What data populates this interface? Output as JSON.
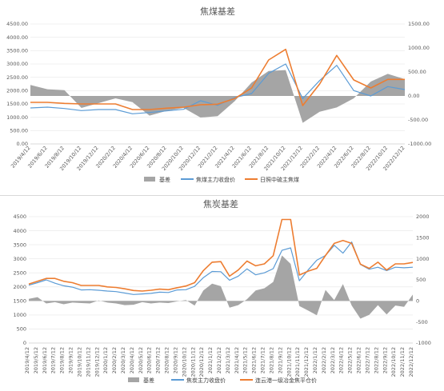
{
  "colors": {
    "basis": "#a5a5a5",
    "futures": "#5b9bd5",
    "spot": "#ed7d31",
    "grid": "#e6e6e6",
    "axis": "#595959"
  },
  "chart_data": [
    {
      "type": "line",
      "title": "焦煤基差",
      "x": [
        "2019/4/12",
        "2019/6/12",
        "2019/8/12",
        "2019/10/12",
        "2019/12/12",
        "2020/2/12",
        "2020/4/12",
        "2020/6/12",
        "2020/8/12",
        "2020/10/12",
        "2020/12/12",
        "2021/2/12",
        "2021/4/12",
        "2021/6/12",
        "2021/8/12",
        "2021/10/12",
        "2021/12/12",
        "2022/2/12",
        "2022/4/12",
        "2022/6/12",
        "2022/8/12",
        "2022/10/12",
        "2022/12/12"
      ],
      "y_left_ticks": [
        "0.00",
        "500.00",
        "1000.00",
        "1500.00",
        "2000.00",
        "2500.00",
        "3000.00",
        "3500.00",
        "4000.00",
        "4500.00"
      ],
      "y_right_ticks": [
        "-1000.00",
        "-500.00",
        "0.00",
        "500.00",
        "1000.00",
        "1500.00"
      ],
      "ylim_left": [
        0,
        4500
      ],
      "ylim_right": [
        -1000,
        1500
      ],
      "legend_position": "bottom",
      "series": [
        {
          "name": "基差",
          "axis": "right",
          "style": "area",
          "values": [
            230,
            140,
            120,
            -250,
            -150,
            -50,
            -130,
            -410,
            -310,
            -250,
            -450,
            -420,
            -110,
            280,
            520,
            540,
            -560,
            -330,
            -240,
            -50,
            300,
            460,
            350
          ]
        },
        {
          "name": "焦煤主力收盘价",
          "axis": "left",
          "style": "line",
          "values": [
            1350,
            1380,
            1330,
            1250,
            1290,
            1290,
            1130,
            1180,
            1240,
            1300,
            1620,
            1450,
            1740,
            1890,
            2650,
            3000,
            1700,
            2380,
            2950,
            2000,
            1800,
            2150,
            2040
          ]
        },
        {
          "name": "日照中硫主焦煤",
          "axis": "left",
          "style": "line",
          "values": [
            1560,
            1560,
            1520,
            1500,
            1500,
            1500,
            1290,
            1290,
            1340,
            1380,
            1470,
            1490,
            1700,
            2100,
            3150,
            3550,
            1440,
            2250,
            3320,
            2400,
            2100,
            2420,
            2420
          ]
        }
      ]
    },
    {
      "type": "line",
      "title": "焦炭基差",
      "x": [
        "2019/4/12",
        "2019/5/12",
        "2019/6/12",
        "2019/7/12",
        "2019/8/12",
        "2019/9/12",
        "2019/10/12",
        "2019/11/12",
        "2019/12/12",
        "2020/1/12",
        "2020/2/12",
        "2020/3/12",
        "2020/4/12",
        "2020/5/12",
        "2020/6/12",
        "2020/7/12",
        "2020/8/12",
        "2020/9/12",
        "2020/10/12",
        "2020/11/12",
        "2020/12/12",
        "2021/1/12",
        "2021/2/12",
        "2021/3/12",
        "2021/4/12",
        "2021/5/12",
        "2021/6/12",
        "2021/7/12",
        "2021/8/12",
        "2021/9/12",
        "2021/10/12",
        "2021/11/12",
        "2021/12/12",
        "2022/1/12",
        "2022/2/12",
        "2022/3/12",
        "2022/4/12",
        "2022/5/12",
        "2022/6/12",
        "2022/7/12",
        "2022/8/12",
        "2022/9/12",
        "2022/10/12",
        "2022/11/12",
        "2022/12/12"
      ],
      "y_left_ticks": [
        "0",
        "500",
        "1000",
        "1500",
        "2000",
        "2500",
        "3000",
        "3500",
        "4000",
        "4500"
      ],
      "y_right_ticks": [
        "-1000",
        "-500",
        "0",
        "500",
        "1000",
        "1500",
        "2000"
      ],
      "ylim_left": [
        0,
        4500
      ],
      "ylim_right": [
        -1000,
        2000
      ],
      "legend_position": "bottom",
      "series": [
        {
          "name": "基差",
          "axis": "right",
          "style": "area",
          "values": [
            50,
            90,
            -60,
            -30,
            -80,
            -40,
            -50,
            -60,
            10,
            -40,
            -60,
            -100,
            -90,
            -30,
            -60,
            -40,
            -50,
            -10,
            20,
            -110,
            250,
            410,
            350,
            -160,
            -100,
            40,
            250,
            300,
            450,
            1080,
            880,
            -120,
            -230,
            -340,
            260,
            20,
            400,
            -110,
            -420,
            -330,
            -100,
            -320,
            -110,
            -140,
            150
          ]
        },
        {
          "name": "焦炭主力收盘价",
          "axis": "left",
          "style": "line",
          "values": [
            2060,
            2150,
            2250,
            2130,
            2040,
            1990,
            1890,
            1900,
            1880,
            1850,
            1830,
            1780,
            1730,
            1750,
            1770,
            1810,
            1800,
            1890,
            1900,
            2020,
            2330,
            2550,
            2540,
            2240,
            2380,
            2640,
            2430,
            2500,
            2650,
            3300,
            3390,
            2220,
            2600,
            2950,
            3120,
            3480,
            3200,
            3600,
            2800,
            2630,
            2700,
            2580,
            2700,
            2680,
            2700
          ]
        },
        {
          "name": "连云港一级冶金焦平仓价",
          "axis": "left",
          "style": "line",
          "values": [
            2100,
            2200,
            2300,
            2300,
            2200,
            2150,
            2050,
            2050,
            2050,
            2000,
            1980,
            1930,
            1870,
            1850,
            1880,
            1920,
            1900,
            1970,
            2030,
            2150,
            2580,
            2880,
            2900,
            2380,
            2600,
            2920,
            2750,
            2820,
            3110,
            4400,
            4400,
            2420,
            2560,
            2660,
            3120,
            3550,
            3650,
            3550,
            2810,
            2660,
            2880,
            2600,
            2820,
            2820,
            2870
          ]
        }
      ]
    }
  ]
}
